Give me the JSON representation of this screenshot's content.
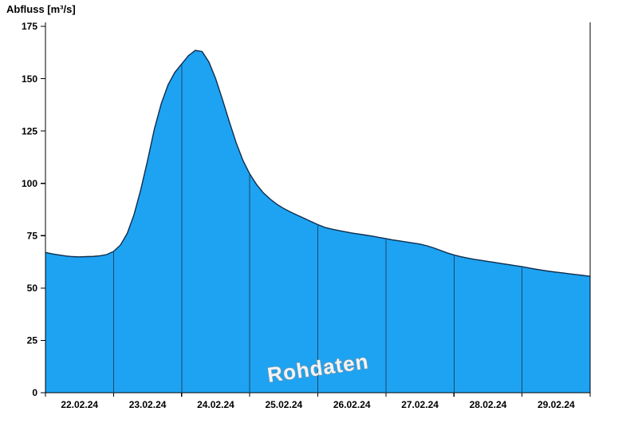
{
  "title": "Abfluss [m³/s]",
  "watermark": "Rohdaten",
  "chart_data": {
    "type": "area",
    "title": "Abfluss [m³/s]",
    "ylabel": "Abfluss [m³/s]",
    "xlabel": "",
    "series_name": "Rohdaten",
    "ylim": [
      0,
      175
    ],
    "y_ticks": [
      0,
      25,
      50,
      75,
      100,
      125,
      150,
      175
    ],
    "x_tick_labels": [
      "22.02.24",
      "23.02.24",
      "24.02.24",
      "25.02.24",
      "26.02.24",
      "27.02.24",
      "28.02.24",
      "29.02.24"
    ],
    "x_range_days": [
      0,
      8
    ],
    "x_step_days": 0.1,
    "grid": "vertical-day-lines-inside-area",
    "legend_position": "none",
    "colors": {
      "fill": "#1EA3F2",
      "line": "#0F2D4D",
      "day_grid": "#1F4668",
      "axis": "#000000",
      "background": "#FFFFFF"
    },
    "series": [
      {
        "name": "Rohdaten",
        "unit": "m³/s",
        "values": [
          67.0,
          66.3,
          65.8,
          65.3,
          65.0,
          64.9,
          65.0,
          65.1,
          65.4,
          66.0,
          67.5,
          70.5,
          76.0,
          85.0,
          97.0,
          111.0,
          126.0,
          138.0,
          147.0,
          153.0,
          157.0,
          161.0,
          163.5,
          163.0,
          158.0,
          150.0,
          140.0,
          129.5,
          119.5,
          111.0,
          104.5,
          99.5,
          95.5,
          92.5,
          90.0,
          88.0,
          86.3,
          84.8,
          83.3,
          81.8,
          80.3,
          79.0,
          78.2,
          77.5,
          76.9,
          76.3,
          75.8,
          75.3,
          74.8,
          74.2,
          73.6,
          73.0,
          72.5,
          72.0,
          71.5,
          71.0,
          70.2,
          69.2,
          68.0,
          66.8,
          65.8,
          65.0,
          64.3,
          63.7,
          63.2,
          62.7,
          62.2,
          61.7,
          61.2,
          60.7,
          60.2,
          59.6,
          59.0,
          58.5,
          58.0,
          57.6,
          57.2,
          56.8,
          56.4,
          56.0,
          55.6
        ]
      }
    ]
  }
}
